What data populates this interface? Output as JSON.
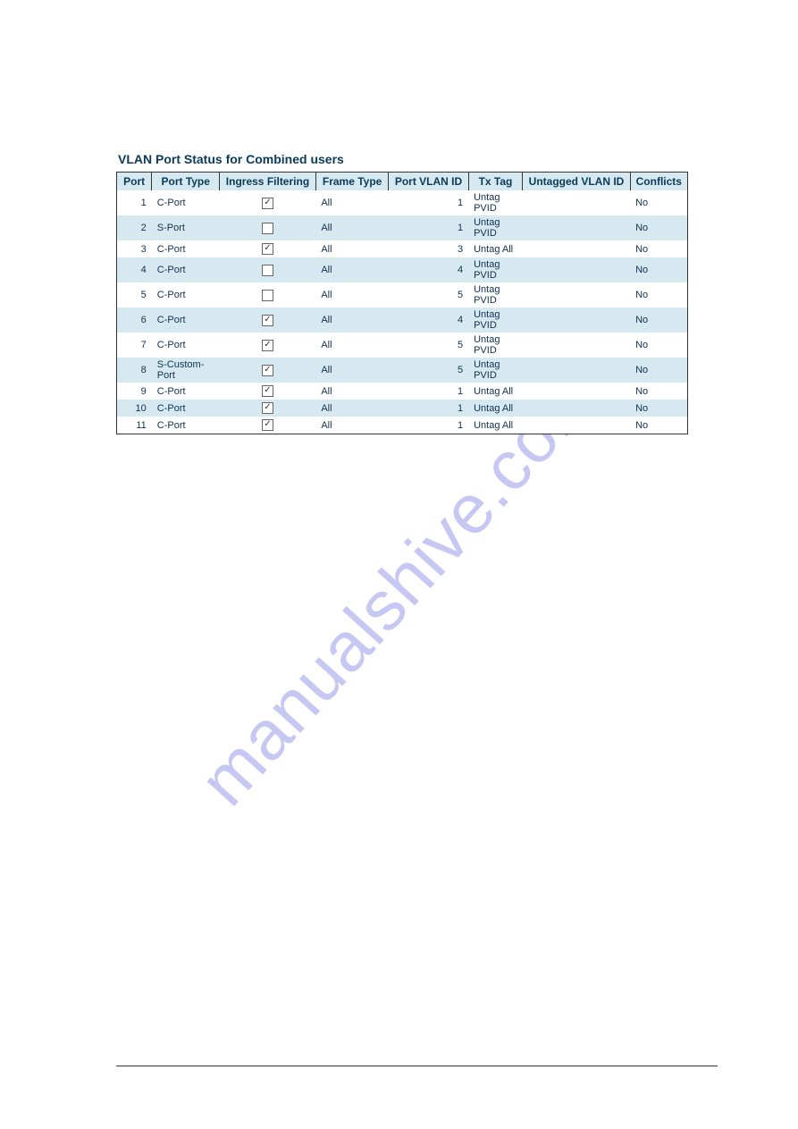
{
  "title": "VLAN Port Status for Combined users",
  "watermark": "manualshive.com",
  "table": {
    "columns": [
      "Port",
      "Port Type",
      "Ingress Filtering",
      "Frame Type",
      "Port VLAN ID",
      "Tx Tag",
      "Untagged VLAN ID",
      "Conflicts"
    ],
    "rows": [
      {
        "port": "1",
        "type": "C-Port",
        "ingress": true,
        "frame": "All",
        "pvid": "1",
        "txtag": "Untag PVID",
        "untagged": "",
        "conflicts": "No"
      },
      {
        "port": "2",
        "type": "S-Port",
        "ingress": false,
        "frame": "All",
        "pvid": "1",
        "txtag": "Untag PVID",
        "untagged": "",
        "conflicts": "No"
      },
      {
        "port": "3",
        "type": "C-Port",
        "ingress": true,
        "frame": "All",
        "pvid": "3",
        "txtag": "Untag All",
        "untagged": "",
        "conflicts": "No"
      },
      {
        "port": "4",
        "type": "C-Port",
        "ingress": false,
        "frame": "All",
        "pvid": "4",
        "txtag": "Untag PVID",
        "untagged": "",
        "conflicts": "No"
      },
      {
        "port": "5",
        "type": "C-Port",
        "ingress": false,
        "frame": "All",
        "pvid": "5",
        "txtag": "Untag PVID",
        "untagged": "",
        "conflicts": "No"
      },
      {
        "port": "6",
        "type": "C-Port",
        "ingress": true,
        "frame": "All",
        "pvid": "4",
        "txtag": "Untag PVID",
        "untagged": "",
        "conflicts": "No"
      },
      {
        "port": "7",
        "type": "C-Port",
        "ingress": true,
        "frame": "All",
        "pvid": "5",
        "txtag": "Untag PVID",
        "untagged": "",
        "conflicts": "No"
      },
      {
        "port": "8",
        "type": "S-Custom-Port",
        "ingress": true,
        "frame": "All",
        "pvid": "5",
        "txtag": "Untag PVID",
        "untagged": "",
        "conflicts": "No"
      },
      {
        "port": "9",
        "type": "C-Port",
        "ingress": true,
        "frame": "All",
        "pvid": "1",
        "txtag": "Untag All",
        "untagged": "",
        "conflicts": "No"
      },
      {
        "port": "10",
        "type": "C-Port",
        "ingress": true,
        "frame": "All",
        "pvid": "1",
        "txtag": "Untag All",
        "untagged": "",
        "conflicts": "No"
      },
      {
        "port": "11",
        "type": "C-Port",
        "ingress": true,
        "frame": "All",
        "pvid": "1",
        "txtag": "Untag All",
        "untagged": "",
        "conflicts": "No"
      }
    ]
  },
  "colors": {
    "header_bg": "#d7e9f0",
    "row_even_bg": "#d7e9f0",
    "row_odd_bg": "#ffffff",
    "title_color": "#0a3a5a",
    "text_color": "#103050",
    "border_color": "#333333",
    "watermark_color": "#b0b0f0"
  }
}
